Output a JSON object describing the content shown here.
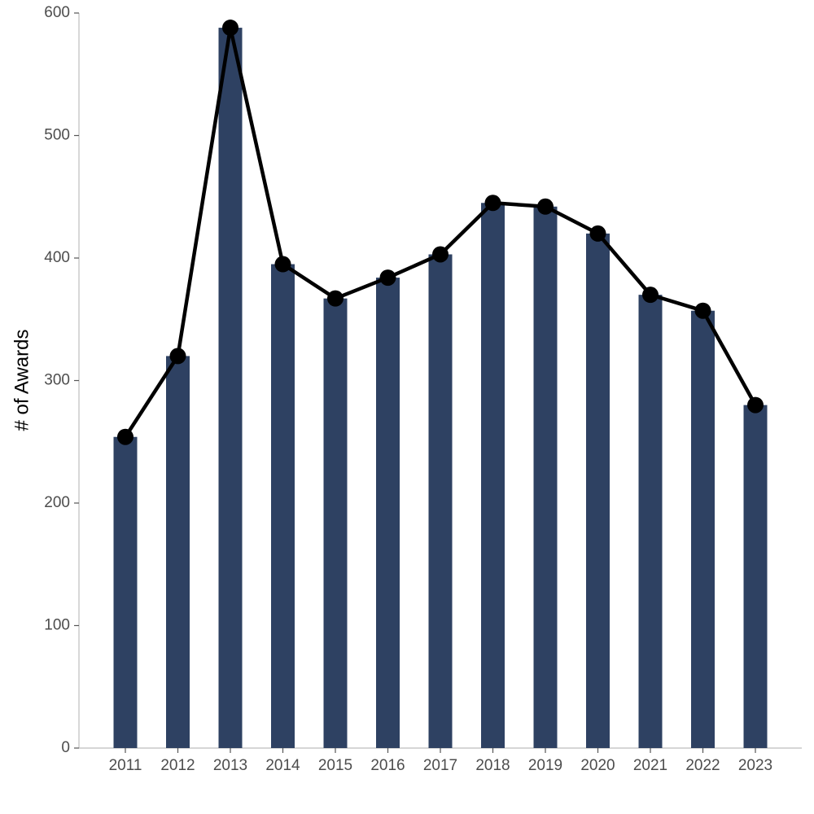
{
  "chart_data": {
    "type": "bar_line",
    "y_label": "# of Awards",
    "categories": [
      "2011",
      "2012",
      "2013",
      "2014",
      "2015",
      "2016",
      "2017",
      "2018",
      "2019",
      "2020",
      "2021",
      "2022",
      "2023"
    ],
    "values": [
      254,
      320,
      588,
      395,
      367,
      384,
      403,
      445,
      442,
      420,
      370,
      357,
      280
    ],
    "color": "#2e4162",
    "line_color": "#000000",
    "ylim": [
      0,
      600
    ],
    "yticks": [
      0,
      100,
      200,
      300,
      400,
      500,
      600
    ],
    "grid": false
  }
}
